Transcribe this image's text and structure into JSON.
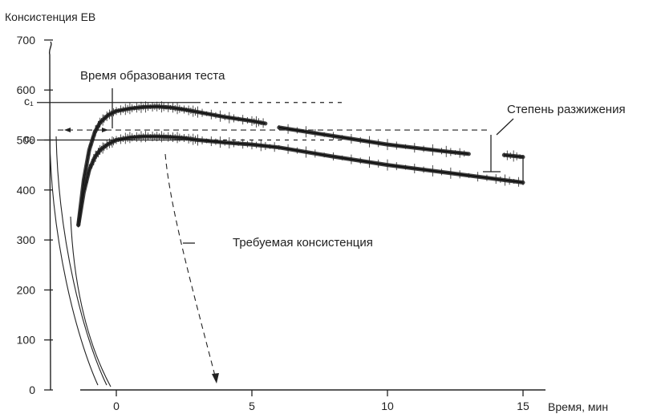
{
  "chart_data": {
    "type": "line",
    "title": "",
    "ylabel": "Консистенция ЕВ",
    "xlabel": "Время, мин",
    "xlim": [
      -4.2,
      16
    ],
    "ylim": [
      0,
      720
    ],
    "x_ticks": [
      0,
      5,
      10,
      15
    ],
    "y_ticks": [
      0,
      100,
      200,
      300,
      400,
      500,
      600,
      700
    ],
    "y_marks": [
      {
        "label": "c₁",
        "value": 575
      },
      {
        "label": "c₂",
        "value": 500
      }
    ],
    "series": [
      {
        "x": [
          -1.4,
          -1.2,
          -1.0,
          -0.8,
          -0.6,
          -0.3,
          0,
          0.5,
          1.0,
          1.5,
          2.0,
          2.5,
          3.0,
          4.0,
          5.0,
          5.5
        ],
        "y": [
          330,
          420,
          480,
          515,
          535,
          550,
          558,
          563,
          566,
          567,
          565,
          561,
          556,
          546,
          538,
          533
        ]
      },
      {
        "x": [
          6.0,
          8.0,
          10.0,
          12.0,
          13.0
        ],
        "y": [
          525,
          508,
          491,
          478,
          472
        ]
      },
      {
        "x": [
          14.3,
          15.0
        ],
        "y": [
          470,
          466
        ]
      },
      {
        "x": [
          -1.4,
          -1.2,
          -1.0,
          -0.8,
          -0.6,
          -0.3,
          0,
          0.5,
          1.0,
          1.5,
          2.0,
          2.5,
          3.0,
          4.0,
          5.0,
          6.0,
          8.0,
          10.0,
          12.0,
          14.0,
          15.0
        ],
        "y": [
          330,
          395,
          440,
          465,
          480,
          492,
          500,
          505,
          507,
          507,
          506,
          504,
          500,
          495,
          491,
          485,
          467,
          450,
          436,
          422,
          415
        ]
      }
    ],
    "annotations": {
      "development_time": "Время образования теста",
      "dilution": "Степень разжижения",
      "required": "Требуемая консистенция"
    }
  }
}
